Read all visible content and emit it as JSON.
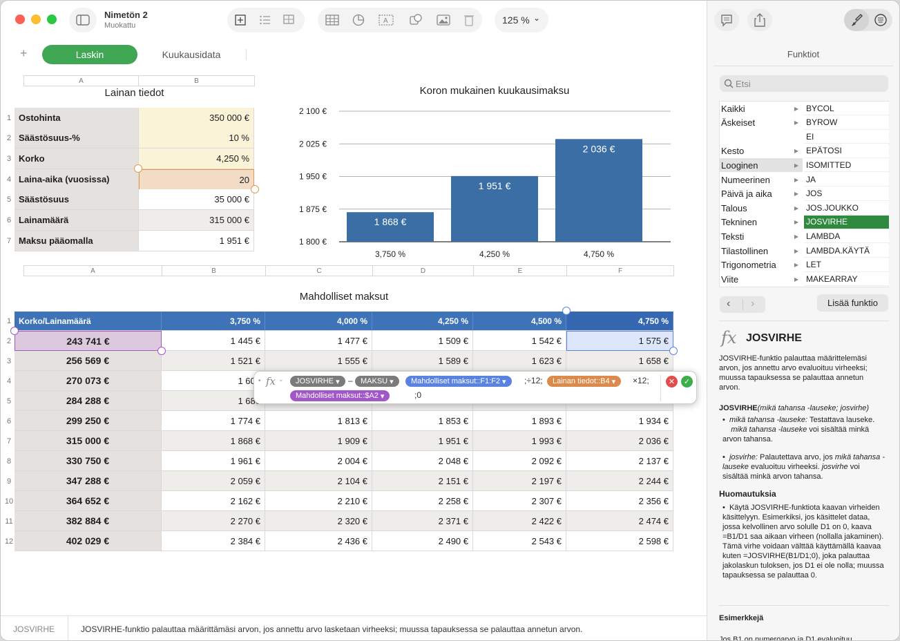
{
  "window": {
    "title": "Nimetön 2",
    "subtitle": "Muokattu",
    "zoom": "125 %"
  },
  "sheets": {
    "active": "Laskin",
    "other": "Kuukausidata"
  },
  "table1": {
    "title": "Lainan tiedot",
    "cols": [
      "A",
      "B"
    ],
    "rows": [
      {
        "n": "1",
        "label": "Ostohinta",
        "value": "350 000 €"
      },
      {
        "n": "2",
        "label": "Säästösuus-%",
        "value": "10 %"
      },
      {
        "n": "3",
        "label": "Korko",
        "value": "4,250 %"
      },
      {
        "n": "4",
        "label": "Laina-aika (vuosissa)",
        "value": "20"
      },
      {
        "n": "5",
        "label": "Säästösuus",
        "value": "35 000 €"
      },
      {
        "n": "6",
        "label": "Lainamäärä",
        "value": "315 000 €"
      },
      {
        "n": "7",
        "label": "Maksu pääomalla",
        "value": "1 951 €"
      }
    ]
  },
  "chart_data": {
    "type": "bar",
    "title": "Koron mukainen kuukausimaksu",
    "categories": [
      "3,750 %",
      "4,250 %",
      "4,750 %"
    ],
    "values": [
      1868,
      1951,
      2036
    ],
    "labels": [
      "1 868 €",
      "1 951 €",
      "2 036 €"
    ],
    "yticks": [
      "2 100 €",
      "2 025 €",
      "1 950 €",
      "1 875 €",
      "1 800 €"
    ],
    "ytick_values": [
      2100,
      2025,
      1950,
      1875,
      1800
    ],
    "ylim": [
      1800,
      2100
    ],
    "bar_color": "#3a6ea5",
    "grid": true
  },
  "table2": {
    "title": "Mahdolliset maksut",
    "cols": [
      "A",
      "B",
      "C",
      "D",
      "E",
      "F"
    ],
    "header": [
      "Korko/Lainamäärä",
      "3,750 %",
      "4,000 %",
      "4,250 %",
      "4,500 %",
      "4,750 %"
    ],
    "rows": [
      {
        "n": "2",
        "a": "243 741 €",
        "v": [
          "1 445 €",
          "1 477 €",
          "1 509 €",
          "1 542 €",
          "1 575 €"
        ]
      },
      {
        "n": "3",
        "a": "256 569 €",
        "v": [
          "1 521 €",
          "1 555 €",
          "1 589 €",
          "1 623 €",
          "1 658 €"
        ]
      },
      {
        "n": "4",
        "a": "270 073 €",
        "v": [
          "1 601",
          "",
          "",
          "",
          ""
        ]
      },
      {
        "n": "5",
        "a": "284 288 €",
        "v": [
          "1 686",
          "",
          "",
          "",
          ""
        ]
      },
      {
        "n": "6",
        "a": "299 250 €",
        "v": [
          "1 774 €",
          "1 813 €",
          "1 853 €",
          "1 893 €",
          "1 934 €"
        ]
      },
      {
        "n": "7",
        "a": "315 000 €",
        "v": [
          "1 868 €",
          "1 909 €",
          "1 951 €",
          "1 993 €",
          "2 036 €"
        ]
      },
      {
        "n": "8",
        "a": "330 750 €",
        "v": [
          "1 961 €",
          "2 004 €",
          "2 048 €",
          "2 092 €",
          "2 137 €"
        ]
      },
      {
        "n": "9",
        "a": "347 288 €",
        "v": [
          "2 059 €",
          "2 104 €",
          "2 151 €",
          "2 197 €",
          "2 244 €"
        ]
      },
      {
        "n": "10",
        "a": "364 652 €",
        "v": [
          "2 162 €",
          "2 210 €",
          "2 258 €",
          "2 307 €",
          "2 356 €"
        ]
      },
      {
        "n": "11",
        "a": "382 884 €",
        "v": [
          "2 270 €",
          "2 320 €",
          "2 371 €",
          "2 422 €",
          "2 474 €"
        ]
      },
      {
        "n": "12",
        "a": "402 029 €",
        "v": [
          "2 384 €",
          "2 436 €",
          "2 490 €",
          "2 543 €",
          "2 598 €"
        ]
      }
    ]
  },
  "formula": {
    "fn1": "JOSVIRHE",
    "minus": "–",
    "fn2": "MAKSU",
    "ref1": "Mahdolliset maksut::F1:F2",
    "op1": ";÷12;",
    "ref2": "Lainan tiedot::B4",
    "op2": "×12;",
    "ref3": "Mahdolliset maksut::$A2",
    "tail": ";0"
  },
  "panel": {
    "header": "Funktiot",
    "search_placeholder": "Etsi",
    "categories": [
      "Kaikki",
      "Äskeiset",
      "",
      "Kesto",
      "Looginen",
      "Numeerinen",
      "Päivä ja aika",
      "Talous",
      "Tekninen",
      "Teksti",
      "Tilastollinen",
      "Trigonometria",
      "Viite"
    ],
    "functions": [
      "BYCOL",
      "BYROW",
      "EI",
      "EPÄTOSI",
      "ISOMITTED",
      "JA",
      "JOS",
      "JOS.JOUKKO",
      "JOSVIRHE",
      "LAMBDA",
      "LAMBDA.KÄYTÄ",
      "LET",
      "MAKEARRAY"
    ],
    "insert_button": "Lisää funktio",
    "fx_name": "JOSVIRHE",
    "desc": "JOSVIRHE-funktio palauttaa määrittelemäsi arvon, jos annettu arvo evaluoituu virheeksi; muussa tapauksessa se palauttaa annetun arvon.",
    "syntax_fn": "JOSVIRHE",
    "syntax_args": "(mikä tahansa -lauseke; josvirhe)",
    "arg1_name": "mikä tahansa -lauseke:",
    "arg1_text": "Testattava lauseke.",
    "arg1_name2": "mikä tahansa -lauseke",
    "arg1_text2": "voi sisältää minkä arvon tahansa.",
    "arg2_name": "josvirhe:",
    "arg2_text": "Palautettava arvo, jos",
    "arg2_name2": "mikä tahansa -lauseke",
    "arg2_text2": "evaluoituu virheeksi.",
    "arg2_name3": "josvirhe",
    "arg2_text3": "voi sisältää minkä arvon tahansa.",
    "notes_title": "Huomautuksia",
    "notes": "Käytä JOSVIRHE-funktiota kaavan virheiden käsittelyyn. Esimerkiksi, jos käsittelet dataa, jossa kelvollinen arvo solulle D1 on 0, kaava =B1/D1 saa aikaan virheen (nollalla jakaminen). Tämä virhe voidaan välttää käyttämällä kaavaa kuten =JOSVIRHE(B1/D1;0), joka palauttaa jakolaskun tuloksen, jos D1 ei ole nolla; muussa tapauksessa se palauttaa 0.",
    "examples_title": "Esimerkkejä",
    "examples_cut": "Jos B1 on numeroarvo ja D1 evaluoituu"
  },
  "status": {
    "fn": "JOSVIRHE",
    "text": "JOSVIRHE-funktio palauttaa määrittämäsi arvon, jos annettu arvo lasketaan virheeksi; muussa tapauksessa se palauttaa annetun arvon."
  }
}
